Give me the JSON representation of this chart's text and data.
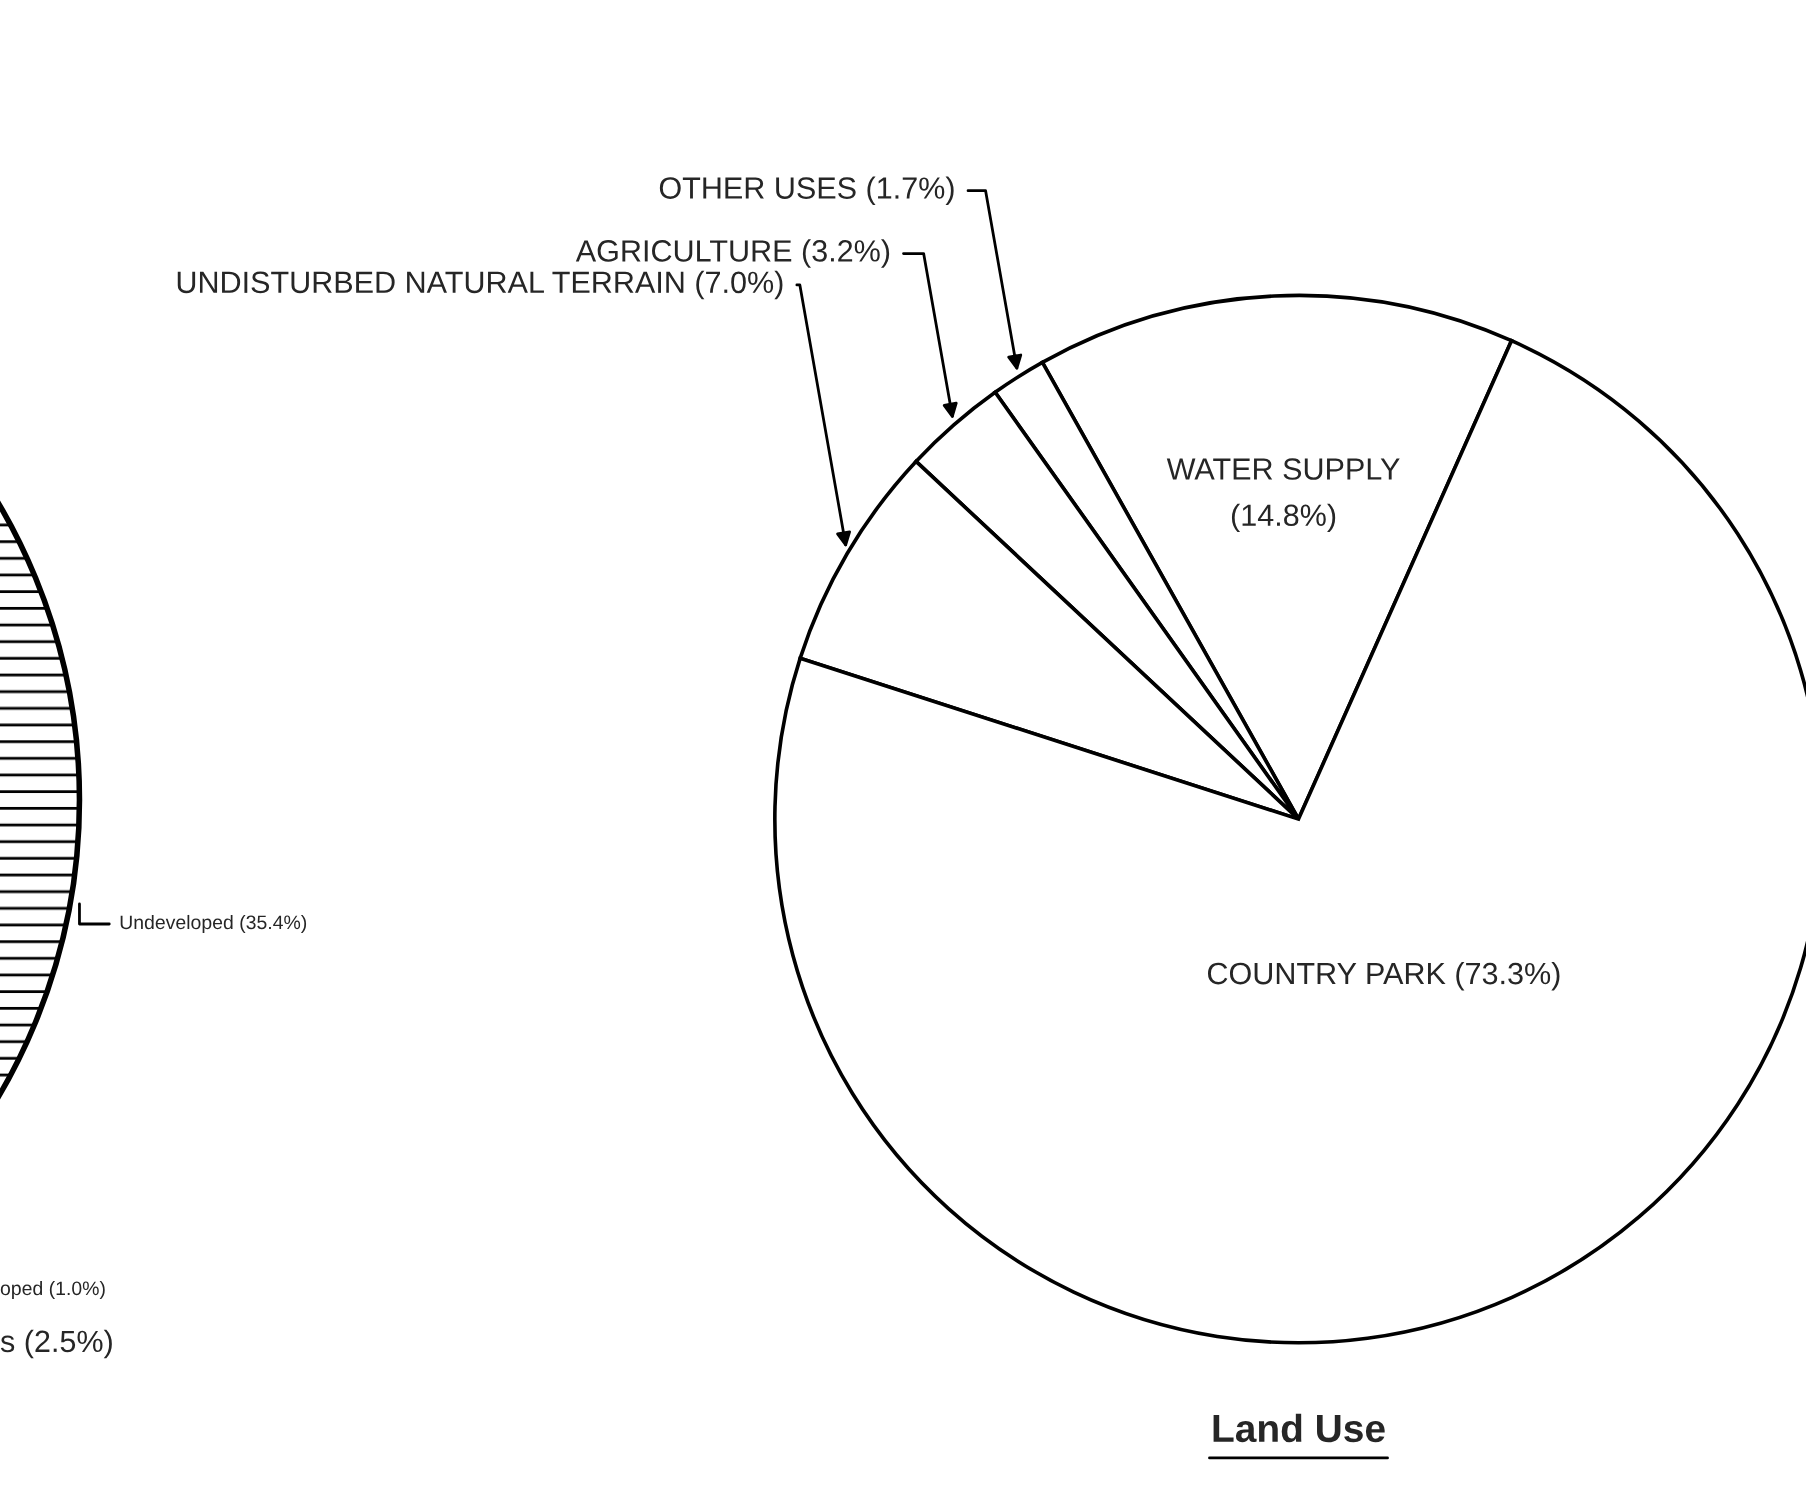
{
  "chart_data": [
    {
      "type": "other",
      "annotations": [
        "Undeveloped (35.4%)",
        "oped (1.0%)",
        "s (2.5%)"
      ]
    },
    {
      "type": "pie",
      "title": "Land Use",
      "categories": [
        "WATER SUPPLY",
        "OTHER USES",
        "AGRICULTURE",
        "UNDISTURBED NATURAL TERRAIN",
        "COUNTRY PARK"
      ],
      "values": [
        14.8,
        1.7,
        3.2,
        7.0,
        73.3
      ],
      "value_labels": [
        "(14.8%)",
        "(1.7%)",
        "(3.2%)",
        "(7.0%)",
        "(73.3%)"
      ],
      "colors": [
        "#ffffff",
        "#ffffff",
        "#ffffff",
        "#ffffff",
        "#ffffff"
      ]
    }
  ]
}
